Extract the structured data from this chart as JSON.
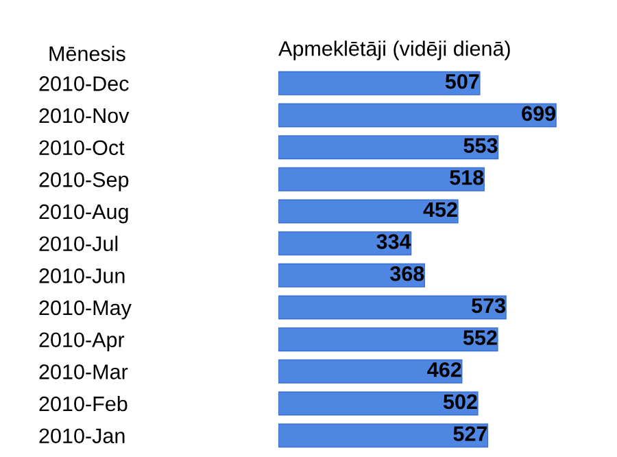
{
  "chart_data": {
    "type": "bar",
    "orientation": "horizontal",
    "title": "Apmeklētāji (vidēji dienā)",
    "ylabel": "Mēnesis",
    "categories": [
      "2010-Dec",
      "2010-Nov",
      "2010-Oct",
      "2010-Sep",
      "2010-Aug",
      "2010-Jul",
      "2010-Jun",
      "2010-May",
      "2010-Apr",
      "2010-Mar",
      "2010-Feb",
      "2010-Jan"
    ],
    "values": [
      507,
      699,
      553,
      518,
      452,
      334,
      368,
      573,
      552,
      462,
      502,
      527
    ],
    "color": "#4f86e2",
    "data_labels": true,
    "grid": false,
    "legend": false
  }
}
